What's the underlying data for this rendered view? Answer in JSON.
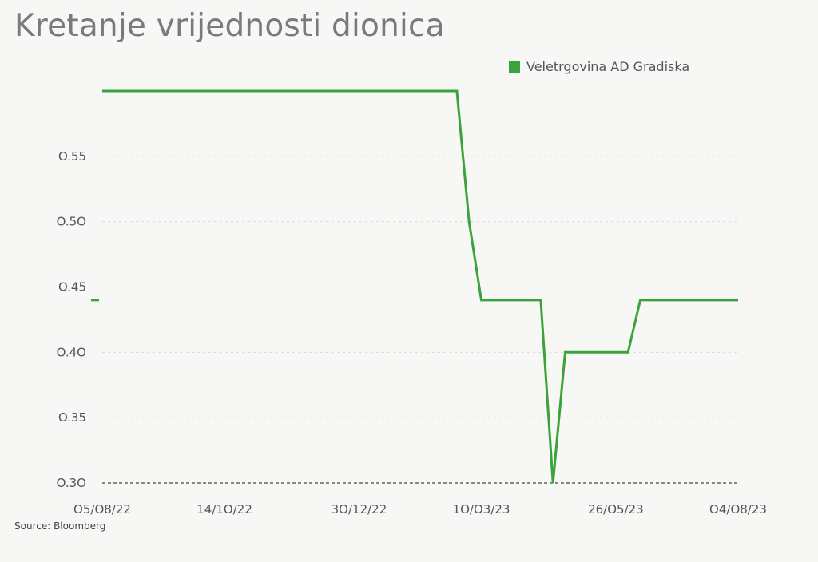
{
  "title": "Kretanje vrijednosti dionica",
  "source": "Source: Bloomberg",
  "colors": {
    "series": "#3aa339",
    "grid": "#d8d8d8",
    "baseline": "#444444",
    "text": "#555555",
    "title": "#7a7a7a",
    "background": "#f7f7f6"
  },
  "chart_data": {
    "type": "line",
    "title": "Kretanje vrijednosti dionica",
    "xlabel": "",
    "ylabel": "",
    "ylim": [
      0.3,
      0.6
    ],
    "yticks": [
      0.3,
      0.35,
      0.4,
      0.45,
      0.5,
      0.55
    ],
    "ytick_labels": [
      "O.3O",
      "O.35",
      "O.4O",
      "O.45",
      "O.5O",
      "O.55"
    ],
    "xlim": [
      "2022-08-05",
      "2023-08-04"
    ],
    "xticks": [
      "2022-08-05",
      "2022-10-14",
      "2022-12-30",
      "2023-03-10",
      "2023-05-26",
      "2023-08-04"
    ],
    "xtick_labels": [
      "O5/O8/22",
      "14/1O/22",
      "3O/12/22",
      "1O/O3/23",
      "26/O5/23",
      "O4/O8/23"
    ],
    "grid": true,
    "legend_position": "top-right",
    "series": [
      {
        "name": "Veletrgovina AD Gradiska",
        "color": "#3aa339",
        "x": [
          "2022-08-05",
          "2023-02-24",
          "2023-03-03",
          "2023-03-10",
          "2023-04-13",
          "2023-04-20",
          "2023-04-27",
          "2023-05-04",
          "2023-05-26",
          "2023-06-02",
          "2023-06-09",
          "2023-08-04"
        ],
        "values": [
          0.6,
          0.6,
          0.5,
          0.44,
          0.44,
          0.3,
          0.4,
          0.4,
          0.4,
          0.4,
          0.44,
          0.44
        ]
      }
    ],
    "reference_line": {
      "y": 0.3,
      "style": "dashed"
    }
  }
}
